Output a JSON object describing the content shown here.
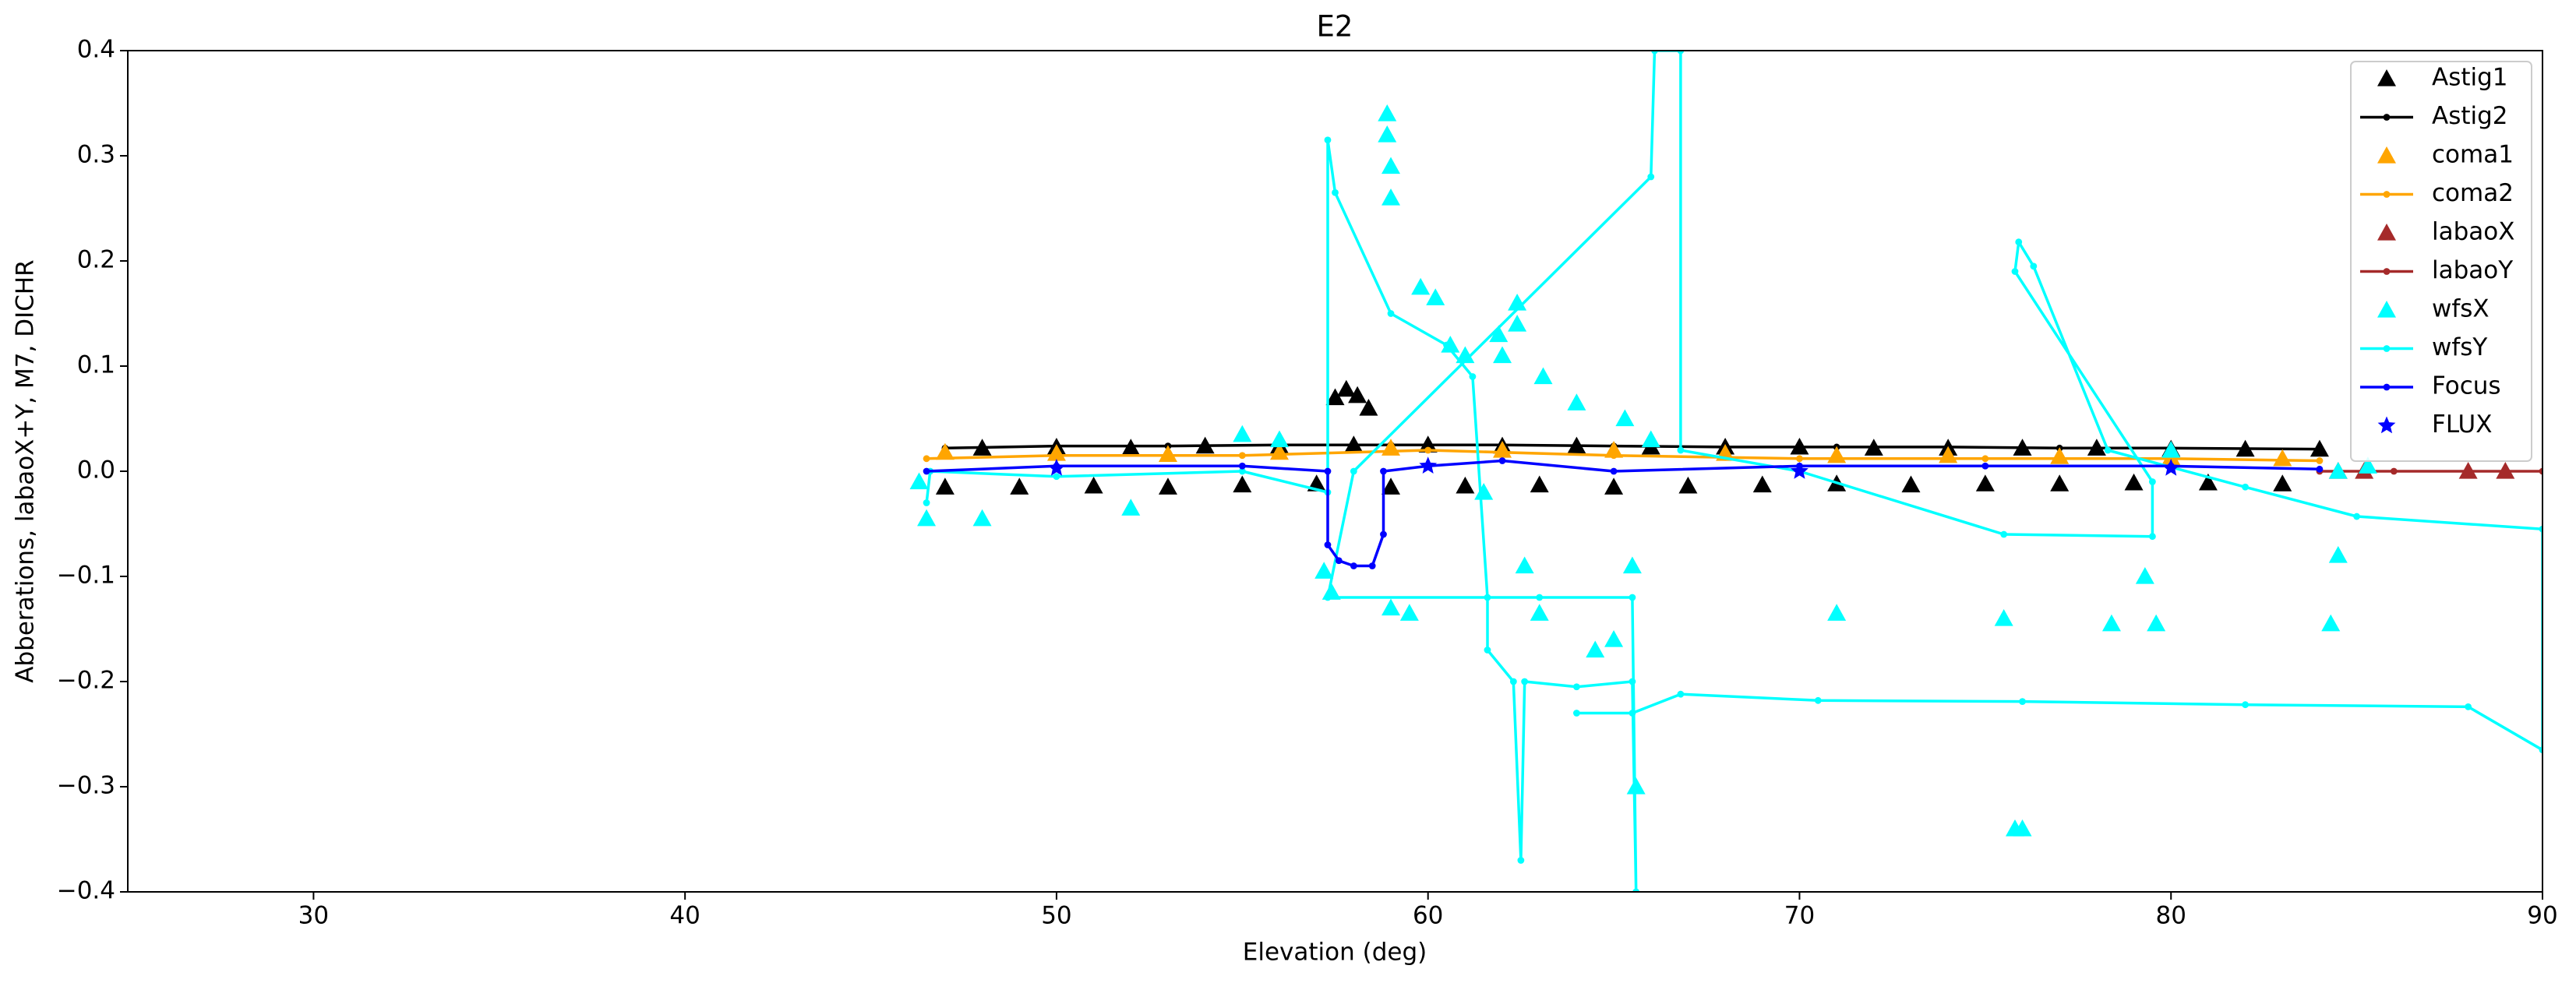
{
  "chart_data": {
    "type": "line",
    "title": "E2",
    "xlabel": "Elevation (deg)",
    "ylabel": "Abberations, labaoX+Y, M7, DICHR",
    "xlim": [
      25,
      90
    ],
    "xticks": [
      30,
      40,
      50,
      60,
      70,
      80,
      90
    ],
    "ylim": [
      -0.4,
      0.4
    ],
    "yticks": [
      {
        "value": -0.4,
        "label": "−0.4"
      },
      {
        "value": -0.3,
        "label": "−0.3"
      },
      {
        "value": -0.2,
        "label": "−0.2"
      },
      {
        "value": -0.1,
        "label": "−0.1"
      },
      {
        "value": 0,
        "label": "0.0"
      },
      0.1,
      0.2,
      0.3,
      0.4
    ],
    "legend": "upper right",
    "series": [
      {
        "name": "Astig1",
        "color": "#000000",
        "marker": "^",
        "line": false,
        "x": [
          47,
          49,
          51,
          53,
          55,
          57,
          59,
          61,
          63,
          65,
          67,
          69,
          71,
          73,
          75,
          77,
          79,
          81,
          83,
          48,
          50,
          52,
          54,
          56,
          58,
          60,
          62,
          64,
          66,
          68,
          70,
          72,
          74,
          76,
          78,
          80,
          82,
          84,
          57.5,
          57.8,
          58.1,
          58.4
        ],
        "values": [
          -0.015,
          -0.015,
          -0.014,
          -0.015,
          -0.013,
          -0.012,
          -0.015,
          -0.014,
          -0.013,
          -0.015,
          -0.014,
          -0.013,
          -0.012,
          -0.013,
          -0.012,
          -0.012,
          -0.011,
          -0.011,
          -0.012,
          0.022,
          0.023,
          0.022,
          0.024,
          0.024,
          0.025,
          0.025,
          0.024,
          0.024,
          0.023,
          0.023,
          0.023,
          0.022,
          0.022,
          0.022,
          0.022,
          0.021,
          0.021,
          0.021,
          0.07,
          0.078,
          0.072,
          0.06
        ]
      },
      {
        "name": "Astig2",
        "color": "#000000",
        "marker": "o",
        "line": true,
        "x": [
          47,
          50,
          53,
          56,
          59,
          62,
          65,
          68,
          71,
          74,
          77,
          80,
          84
        ],
        "values": [
          0.022,
          0.024,
          0.024,
          0.025,
          0.025,
          0.025,
          0.024,
          0.023,
          0.023,
          0.023,
          0.022,
          0.022,
          0.021
        ]
      },
      {
        "name": "coma1",
        "color": "#ffa500",
        "marker": "^",
        "line": false,
        "x": [
          47,
          50,
          53,
          56,
          59,
          62,
          65,
          68,
          71,
          74,
          77,
          80,
          83
        ],
        "values": [
          0.018,
          0.017,
          0.016,
          0.018,
          0.022,
          0.02,
          0.02,
          0.017,
          0.015,
          0.015,
          0.014,
          0.013,
          0.012
        ]
      },
      {
        "name": "coma2",
        "color": "#ffa500",
        "marker": "o",
        "line": true,
        "x": [
          46.5,
          50,
          55,
          60,
          65,
          70,
          75,
          80,
          84
        ],
        "values": [
          0.012,
          0.015,
          0.015,
          0.02,
          0.015,
          0.012,
          0.012,
          0.012,
          0.01
        ]
      },
      {
        "name": "labaoX",
        "color": "#a52a2a",
        "marker": "^",
        "line": false,
        "x": [
          84.5,
          85.2,
          88,
          89
        ],
        "values": [
          0,
          0,
          0,
          0
        ]
      },
      {
        "name": "labaoY",
        "color": "#a52a2a",
        "marker": "o",
        "line": true,
        "x": [
          84,
          86,
          88,
          90
        ],
        "values": [
          0,
          0,
          0,
          0
        ]
      },
      {
        "name": "wfsX",
        "color": "#00ffff",
        "marker": "^",
        "line": false,
        "x": [
          46.3,
          46.5,
          48,
          52,
          55,
          56,
          57.2,
          57.4,
          58.9,
          58.9,
          59,
          59,
          59,
          59.5,
          59.8,
          60.2,
          60.6,
          61,
          61.5,
          61.9,
          62,
          62.4,
          62.4,
          62.6,
          63.1,
          63,
          64,
          64.5,
          65,
          65.3,
          65.5,
          65.6,
          66,
          71,
          75.5,
          75.8,
          76,
          78.4,
          79.3,
          79.6,
          80,
          84.3,
          84.5,
          84.5,
          85.3
        ],
        "values": [
          -0.01,
          -0.045,
          -0.045,
          -0.035,
          0.035,
          0.03,
          -0.095,
          -0.115,
          0.34,
          0.32,
          0.29,
          0.26,
          -0.13,
          -0.135,
          0.175,
          0.165,
          0.12,
          0.11,
          -0.02,
          0.13,
          0.11,
          0.16,
          0.14,
          -0.09,
          0.09,
          -0.135,
          0.065,
          -0.17,
          -0.16,
          0.05,
          -0.09,
          -0.3,
          0.03,
          -0.135,
          -0.14,
          -0.34,
          -0.34,
          -0.145,
          -0.1,
          -0.145,
          0.02,
          -0.145,
          -0.08,
          0,
          0.005
        ]
      },
      {
        "name": "wfsY",
        "color": "#00ffff",
        "marker": "o",
        "line": true,
        "x": [
          46.5,
          46.6,
          50,
          55,
          57.3,
          57.3,
          57.5,
          59,
          60.5,
          61.2,
          61.6,
          61.6,
          62.3,
          62.5,
          62.6,
          64,
          65.5,
          65.6,
          65.5,
          63,
          57.3,
          58,
          66,
          66.1,
          66.8,
          66.8,
          70,
          75.5,
          79.5,
          79.5,
          75.8,
          75.9,
          76.3,
          78.3,
          82,
          85,
          90,
          90,
          88,
          82,
          76,
          70.5,
          66.8,
          65.5,
          64
        ],
        "values": [
          -0.03,
          0,
          -0.005,
          0,
          -0.02,
          0.315,
          0.265,
          0.15,
          0.12,
          0.09,
          -0.12,
          -0.17,
          -0.2,
          -0.37,
          -0.2,
          -0.205,
          -0.2,
          -0.4,
          -0.12,
          -0.12,
          -0.12,
          0,
          0.28,
          0.4,
          0.4,
          0.02,
          0,
          -0.06,
          -0.062,
          -0.01,
          0.19,
          0.218,
          0.195,
          0.02,
          -0.015,
          -0.043,
          -0.055,
          -0.265,
          -0.224,
          -0.222,
          -0.219,
          -0.218,
          -0.212,
          -0.23,
          -0.23
        ]
      },
      {
        "name": "Focus",
        "color": "#0000ff",
        "marker": "o",
        "line": true,
        "x": [
          46.5,
          50,
          55,
          57.3,
          57.3,
          57.6,
          58,
          58.5,
          58.8,
          58.8,
          60,
          62,
          65,
          70,
          75,
          80,
          84
        ],
        "values": [
          0,
          0.005,
          0.005,
          0,
          -0.07,
          -0.085,
          -0.09,
          -0.09,
          -0.06,
          0,
          0.005,
          0.01,
          0,
          0.005,
          0.005,
          0.005,
          0.002
        ]
      },
      {
        "name": "FLUX",
        "color": "#0000ff",
        "marker": "*",
        "line": false,
        "x": [
          50,
          60,
          70,
          80
        ],
        "values": [
          0.003,
          0.005,
          0,
          0.003
        ]
      }
    ]
  }
}
